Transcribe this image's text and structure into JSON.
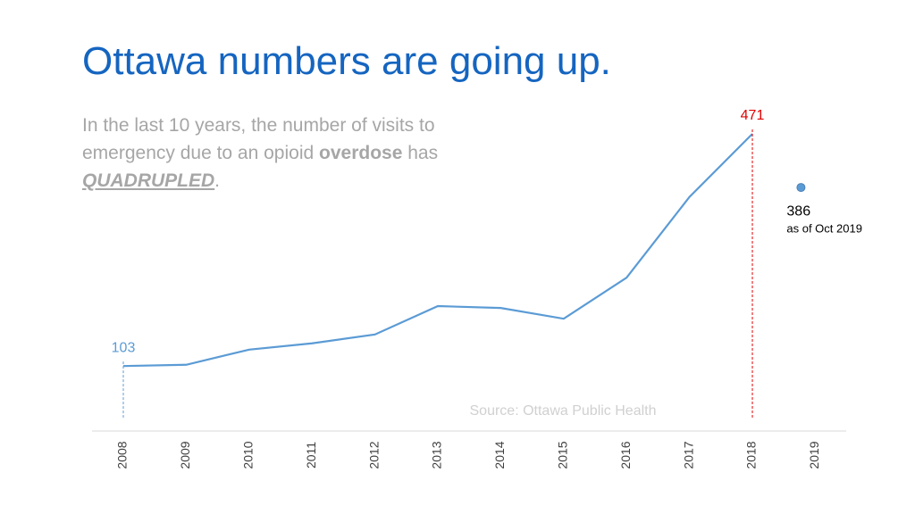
{
  "chart_data": {
    "type": "line",
    "title": "Ottawa numbers are going up.",
    "subtitle": [
      "In the last 10 years, the number of visits to emergency due to an opioid ",
      "overdose",
      " has ",
      "QUADRUPLED",
      "."
    ],
    "source": "Source: Ottawa Public Health",
    "categories": [
      "2008",
      "2009",
      "2010",
      "2011",
      "2012",
      "2013",
      "2014",
      "2015",
      "2016",
      "2017",
      "2018",
      "2019"
    ],
    "series": [
      {
        "color": "#5b9bd5",
        "values": [
          103,
          105,
          129,
          139,
          153,
          198,
          195,
          178,
          243,
          371,
          471,
          null
        ]
      }
    ],
    "highlights": [
      {
        "index": 0,
        "color": "#5b9bd5"
      },
      {
        "index": 10,
        "color": "#e00000"
      }
    ],
    "point": {
      "category": "2019",
      "value": 386,
      "note": "as of Oct 2019",
      "color": "#5b9bd5"
    },
    "ylim": [
      0,
      500
    ]
  }
}
